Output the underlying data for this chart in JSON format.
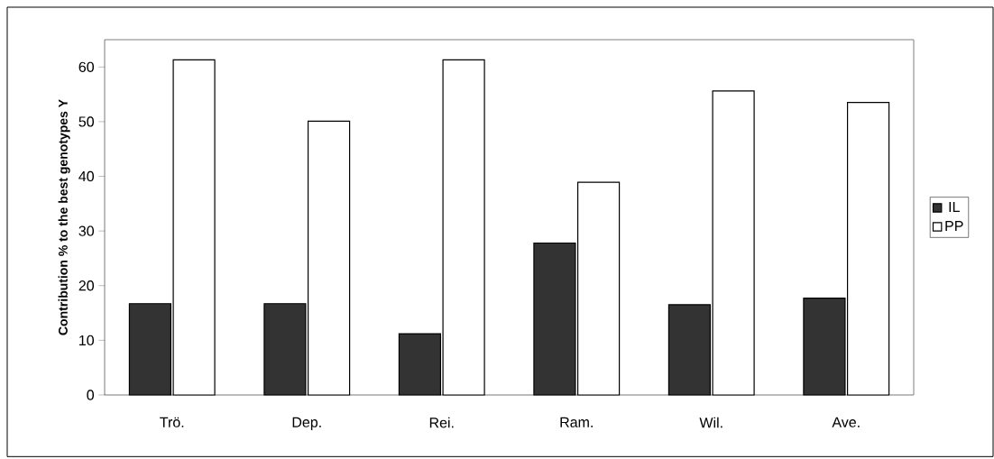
{
  "chart_data": {
    "type": "bar",
    "ylabel": "Contribution % to the best genotypes Y",
    "categories": [
      "Trö.",
      "Dep.",
      "Rei.",
      "Ram.",
      "Wil.",
      "Ave."
    ],
    "series": [
      {
        "name": "IL",
        "color": "#333333",
        "values": [
          16.7,
          16.7,
          11.2,
          27.8,
          16.5,
          17.7
        ]
      },
      {
        "name": "PP",
        "color": "#ffffff",
        "values": [
          61.3,
          50.1,
          61.3,
          38.9,
          55.6,
          53.5
        ]
      }
    ],
    "ylim": [
      0,
      65
    ],
    "yticks": [
      0,
      10,
      20,
      30,
      40,
      50,
      60
    ],
    "grid": false,
    "legend": "right"
  }
}
